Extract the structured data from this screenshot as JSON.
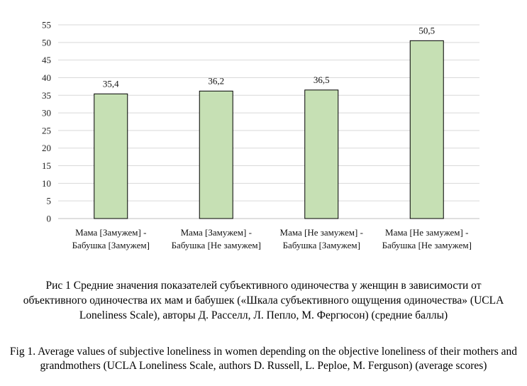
{
  "chart_data": {
    "type": "bar",
    "categories": [
      [
        "Мама [Замужем] -",
        "Бабушка [Замужем]"
      ],
      [
        "Мама [Замужем] -",
        "Бабушка [Не замужем]"
      ],
      [
        "Мама [Не замужем] -",
        "Бабушка [Замужем]"
      ],
      [
        "Мама [Не замужем] -",
        "Бабушка [Не замужем]"
      ]
    ],
    "values": [
      35.4,
      36.2,
      36.5,
      50.5
    ],
    "data_labels": [
      "35,4",
      "36,2",
      "36,5",
      "50,5"
    ],
    "ylim": [
      0,
      55
    ],
    "yticks": [
      0,
      5,
      10,
      15,
      20,
      25,
      30,
      35,
      40,
      45,
      50,
      55
    ],
    "grid": true,
    "bar_color": "#c6e0b4",
    "bar_edge_color": "#000000",
    "grid_color": "#d9d9d9"
  },
  "caption": {
    "ru": "Рис 1 Средние значения показателей субъективного одиночества у женщин в зависимости от объективного одиночества их мам и бабушек («Шкала субъективного ощущения одиночества» (UCLA Loneliness Scale), авторы Д. Расселл, Л. Пепло, М. Фергюсон) (средние баллы)",
    "en": "Fig 1. Average values of subjective loneliness in women depending on the objective loneliness of their mothers and grandmothers (UCLA Loneliness Scale, authors D. Russell, L. Peploe, M. Ferguson) (average scores)"
  }
}
